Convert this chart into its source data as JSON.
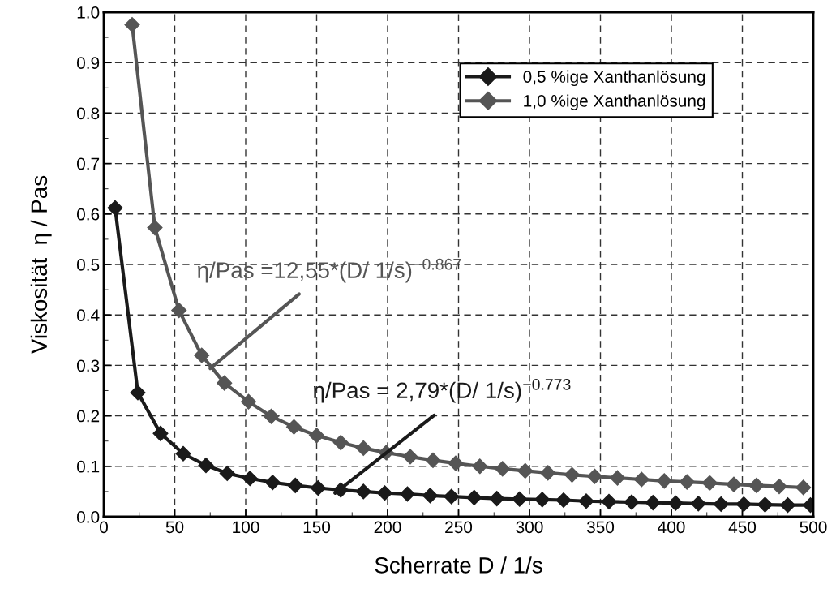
{
  "chart_data": {
    "type": "line",
    "xlabel": "Scherrate D / 1/s",
    "ylabel": "Viskosität  η / Pas",
    "xlim": [
      0,
      500
    ],
    "ylim": [
      0.0,
      1.0
    ],
    "xticks": [
      0,
      50,
      100,
      150,
      200,
      250,
      300,
      350,
      400,
      450,
      500
    ],
    "yticks": [
      {
        "value": 0,
        "label": "0.0"
      },
      0.1,
      0.2,
      0.3,
      0.4,
      0.5,
      0.6,
      0.7,
      0.8,
      0.9,
      {
        "value": 1,
        "label": "1.0"
      }
    ],
    "grid": true,
    "legend": "top right",
    "marker": "diamond",
    "line_style": "solid",
    "series": [
      {
        "name": "0,5 %ige Xanthanlösung",
        "color": "#1a1a1a",
        "x": [
          8,
          24,
          40,
          56,
          72,
          87,
          103,
          119,
          135,
          151,
          167,
          183,
          198,
          214,
          230,
          245,
          261,
          277,
          293,
          309,
          324,
          340,
          356,
          372,
          387,
          403,
          419,
          435,
          451,
          466,
          482,
          498
        ],
        "values": [
          0.612,
          0.246,
          0.165,
          0.125,
          0.102,
          0.086,
          0.076,
          0.068,
          0.062,
          0.057,
          0.053,
          0.05,
          0.047,
          0.045,
          0.042,
          0.04,
          0.038,
          0.036,
          0.035,
          0.034,
          0.033,
          0.031,
          0.03,
          0.029,
          0.028,
          0.027,
          0.026,
          0.025,
          0.025,
          0.024,
          0.023,
          0.023
        ]
      },
      {
        "name": "1,0 %ige Xanthanlösung",
        "color": "#555555",
        "x": [
          20,
          36,
          53,
          69,
          85,
          102,
          118,
          134,
          150,
          167,
          183,
          199,
          216,
          232,
          248,
          265,
          281,
          297,
          313,
          330,
          346,
          362,
          379,
          395,
          411,
          427,
          444,
          460,
          476,
          493
        ],
        "values": [
          0.975,
          0.573,
          0.409,
          0.32,
          0.265,
          0.228,
          0.199,
          0.178,
          0.161,
          0.147,
          0.136,
          0.127,
          0.119,
          0.112,
          0.106,
          0.1,
          0.095,
          0.091,
          0.087,
          0.083,
          0.08,
          0.077,
          0.074,
          0.071,
          0.069,
          0.067,
          0.064,
          0.062,
          0.06,
          0.058
        ]
      }
    ],
    "annotations": [
      {
        "text": "η/Pas =12,55*(D/ 1/s)$^{−0.867}$",
        "x": 75,
        "y": 0.294
      },
      {
        "text": "η/Pas = 2,79*(D/ 1/s)$^{−0.773}$",
        "x": 163,
        "y": 0.047
      }
    ]
  }
}
